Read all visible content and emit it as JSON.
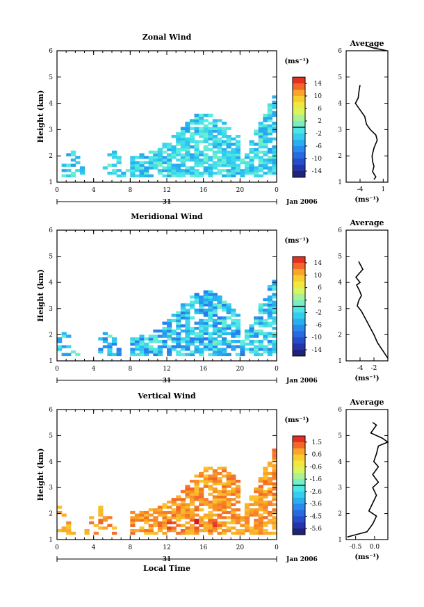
{
  "chart_data": [
    {
      "type": "heatmap",
      "title": "Zonal Wind",
      "ylabel": "Height (km)",
      "xticks": [
        "0",
        "4",
        "8",
        "12",
        "16",
        "20",
        "0"
      ],
      "xlim": [
        0,
        24
      ],
      "yticks": [
        "1",
        "2",
        "3",
        "4",
        "5",
        "6"
      ],
      "ylim": [
        1,
        6
      ],
      "day_label": "31",
      "date_label": "Jan 2006",
      "colorbar": {
        "unit_label": "(ms⁻¹)",
        "ticks": [
          "14",
          "10",
          "6",
          "2",
          "-2",
          "-6",
          "-10",
          "-14"
        ],
        "range": [
          -16,
          16
        ]
      },
      "profile": {
        "title": "Average",
        "xticks": [
          "-4",
          "1"
        ],
        "xlim": [
          -7,
          2
        ],
        "xlabel": "(ms⁻¹)",
        "yticks": [
          "1",
          "2",
          "3",
          "4",
          "5",
          "6"
        ],
        "points": [
          [
            -1.0,
            1.1
          ],
          [
            -0.6,
            1.2
          ],
          [
            -1.3,
            1.4
          ],
          [
            -1.0,
            1.6
          ],
          [
            -1.3,
            1.8
          ],
          [
            -1.4,
            2.0
          ],
          [
            -1.0,
            2.3
          ],
          [
            -0.3,
            2.6
          ],
          [
            -0.6,
            2.8
          ],
          [
            -1.8,
            3.0
          ],
          [
            -2.6,
            3.2
          ],
          [
            -3.0,
            3.5
          ],
          [
            -4.2,
            3.8
          ],
          [
            -5.0,
            4.0
          ],
          [
            -4.4,
            4.2
          ],
          [
            -4.2,
            4.5
          ],
          [
            -4.0,
            4.7
          ]
        ],
        "points_upper": [
          [
            -2.8,
            6.2
          ],
          [
            -1.0,
            6.1
          ],
          [
            1.8,
            6.0
          ]
        ]
      },
      "cells": {
        "seed": 11,
        "bottom": 1.2,
        "peak_time": 16,
        "peak_height": 3.6,
        "base_top": 1.9,
        "late_top": 4.6,
        "mean": -2.5,
        "spread": 3.5,
        "hot_spots": []
      }
    },
    {
      "type": "heatmap",
      "title": "Meridional Wind",
      "ylabel": "Height (km)",
      "xticks": [
        "0",
        "4",
        "8",
        "12",
        "16",
        "20",
        "0"
      ],
      "xlim": [
        0,
        24
      ],
      "yticks": [
        "1",
        "2",
        "3",
        "4",
        "5",
        "6"
      ],
      "ylim": [
        1,
        6
      ],
      "day_label": "31",
      "date_label": "Jan 2006",
      "colorbar": {
        "unit_label": "(ms⁻¹)",
        "ticks": [
          "14",
          "10",
          "6",
          "2",
          "-2",
          "-6",
          "-10",
          "-14"
        ],
        "range": [
          -16,
          16
        ]
      },
      "profile": {
        "title": "Average",
        "xticks": [
          "-4",
          "-2"
        ],
        "xlim": [
          -6,
          0
        ],
        "xlabel": "(ms⁻¹)",
        "yticks": [
          "1",
          "2",
          "3",
          "4",
          "5",
          "6"
        ],
        "points": [
          [
            0.0,
            1.1
          ],
          [
            -0.5,
            1.3
          ],
          [
            -1.0,
            1.5
          ],
          [
            -1.5,
            1.7
          ],
          [
            -2.0,
            2.0
          ],
          [
            -2.6,
            2.3
          ],
          [
            -3.2,
            2.6
          ],
          [
            -3.8,
            2.9
          ],
          [
            -4.4,
            3.1
          ],
          [
            -4.2,
            3.3
          ],
          [
            -3.8,
            3.5
          ],
          [
            -4.1,
            3.7
          ],
          [
            -4.5,
            3.9
          ],
          [
            -4.0,
            4.0
          ],
          [
            -4.6,
            4.2
          ],
          [
            -3.6,
            4.5
          ],
          [
            -4.2,
            4.8
          ]
        ],
        "points_upper": []
      },
      "cells": {
        "seed": 23,
        "bottom": 1.2,
        "peak_time": 16,
        "peak_height": 3.7,
        "base_top": 1.8,
        "late_top": 4.6,
        "mean": -3.5,
        "spread": 4.5,
        "hot_spots": []
      }
    },
    {
      "type": "heatmap",
      "title": "Vertical Wind",
      "ylabel": "Height (km)",
      "xlabel": "Local Time",
      "xticks": [
        "0",
        "4",
        "8",
        "12",
        "16",
        "20",
        "0"
      ],
      "xlim": [
        0,
        24
      ],
      "yticks": [
        "1",
        "2",
        "3",
        "4",
        "5",
        "6"
      ],
      "ylim": [
        1,
        6
      ],
      "day_label": "31",
      "date_label": "Jan 2006",
      "colorbar": {
        "unit_label": "(ms⁻¹)",
        "ticks": [
          "1.5",
          "0.6",
          "-0.6",
          "-1.6",
          "-2.6",
          "-3.6",
          "-4.5",
          "-5.6"
        ],
        "range": [
          -6.0,
          2.0
        ]
      },
      "profile": {
        "title": "Average",
        "xticks": [
          "-0.5",
          "0.0"
        ],
        "xlim": [
          -0.75,
          0.35
        ],
        "xlabel": "(ms⁻¹)",
        "yticks": [
          "1",
          "2",
          "3",
          "4",
          "5",
          "6"
        ],
        "points": [
          [
            -0.72,
            1.1
          ],
          [
            -0.2,
            1.3
          ],
          [
            -0.05,
            1.6
          ],
          [
            0.05,
            1.9
          ],
          [
            -0.15,
            2.1
          ],
          [
            -0.05,
            2.4
          ],
          [
            0.05,
            2.7
          ],
          [
            -0.05,
            3.0
          ],
          [
            0.1,
            3.2
          ],
          [
            -0.05,
            3.5
          ],
          [
            0.1,
            3.8
          ],
          [
            -0.02,
            4.0
          ],
          [
            0.05,
            4.3
          ],
          [
            0.1,
            4.6
          ],
          [
            0.35,
            4.75
          ],
          [
            0.2,
            4.9
          ],
          [
            -0.1,
            5.1
          ],
          [
            0.05,
            5.4
          ],
          [
            -0.05,
            5.5
          ]
        ],
        "points_upper": []
      },
      "cells": {
        "seed": 37,
        "bottom": 1.2,
        "peak_time": 17,
        "peak_height": 3.8,
        "base_top": 2.0,
        "late_top": 4.8,
        "mean": 0.8,
        "spread": 0.5,
        "hot_spots": [
          [
            12,
            1.5
          ],
          [
            15,
            1.6
          ],
          [
            17,
            1.6
          ]
        ]
      }
    }
  ]
}
